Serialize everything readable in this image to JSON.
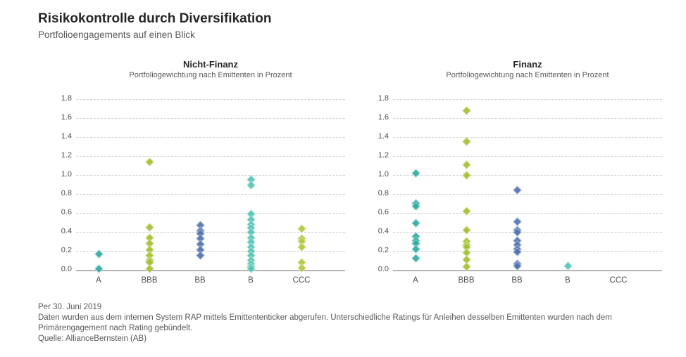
{
  "header": {
    "title": "Risikokontrolle durch Diversifikation",
    "subtitle": "Portfolioengagements auf einen Blick"
  },
  "footnotes": [
    "Per 30. Juni 2019",
    "Daten wurden aus dem internen System RAP mittels Emittententicker abgerufen. Unterschiedliche Ratings für Anleihen desselben Emittenten wurden nach dem",
    "Primärengagement nach Rating gebündelt.",
    "Quelle: AllianceBernstein (AB)"
  ],
  "colors": {
    "rating_a": "#2FABA1",
    "rating_bbb": "#A3C02E",
    "rating_bb": "#5172AE",
    "rating_b": "#56C4B2",
    "rating_ccc": "#AFC83C",
    "gridline": "#CFCFCF",
    "zero_axis": "#B5B5B5"
  },
  "chart_data": [
    {
      "type": "scatter",
      "title": "Nicht-Finanz",
      "subtitle": "Portfoliogewichtung nach Emittenten in Prozent",
      "categories": [
        "A",
        "BBB",
        "BB",
        "B",
        "CCC"
      ],
      "ylim": [
        0,
        1.8
      ],
      "ytick_step": 0.2,
      "grid": "dashed horizontal",
      "marker": "diamond",
      "series": [
        {
          "category": "A",
          "color": "#2FABA1",
          "values": [
            0.17,
            0.01
          ]
        },
        {
          "category": "BBB",
          "color": "#A3C02E",
          "values": [
            1.14,
            0.45,
            0.34,
            0.28,
            0.21,
            0.15,
            0.1,
            0.08,
            0.01
          ]
        },
        {
          "category": "BB",
          "color": "#5172AE",
          "values": [
            0.47,
            0.41,
            0.38,
            0.33,
            0.27,
            0.21,
            0.15
          ]
        },
        {
          "category": "B",
          "color": "#56C4B2",
          "values": [
            0.95,
            0.89,
            0.59,
            0.53,
            0.48,
            0.44,
            0.4,
            0.34,
            0.29,
            0.24,
            0.2,
            0.15,
            0.1,
            0.06,
            0.03,
            0.01
          ]
        },
        {
          "category": "CCC",
          "color": "#AFC83C",
          "values": [
            0.43,
            0.33,
            0.3,
            0.24,
            0.08,
            0.02
          ]
        }
      ]
    },
    {
      "type": "scatter",
      "title": "Finanz",
      "subtitle": "Portfoliogewichtung nach Emittenten in Prozent",
      "categories": [
        "A",
        "BBB",
        "BB",
        "B",
        "CCC"
      ],
      "ylim": [
        0,
        1.8
      ],
      "ytick_step": 0.2,
      "grid": "dashed horizontal",
      "marker": "diamond",
      "series": [
        {
          "category": "A",
          "color": "#2FABA1",
          "values": [
            1.02,
            0.7,
            0.67,
            0.49,
            0.35,
            0.31,
            0.28,
            0.22,
            0.12
          ]
        },
        {
          "category": "BBB",
          "color": "#A3C02E",
          "values": [
            1.68,
            1.35,
            1.11,
            1.0,
            0.62,
            0.42,
            0.3,
            0.26,
            0.24,
            0.18,
            0.11,
            0.03
          ]
        },
        {
          "category": "BB",
          "color": "#5172AE",
          "values": [
            0.84,
            0.51,
            0.42,
            0.4,
            0.31,
            0.26,
            0.22,
            0.19,
            0.06,
            0.04
          ]
        },
        {
          "category": "B",
          "color": "#56C4B2",
          "values": [
            0.04
          ]
        },
        {
          "category": "CCC",
          "color": "#AFC83C",
          "values": []
        }
      ]
    }
  ]
}
